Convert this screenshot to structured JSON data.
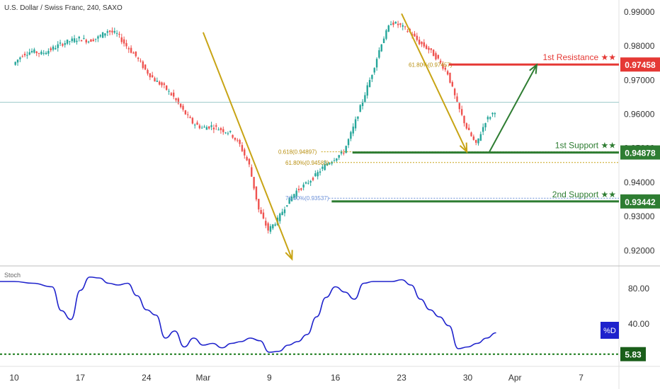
{
  "header": {
    "title": "U.S. Dollar / Swiss Franc, 240, SAXO"
  },
  "colors": {
    "up": "#26a69a",
    "down": "#ef5350",
    "resistance": "#e53935",
    "support": "#2e7d32",
    "arrow_gold": "#c8a415",
    "arrow_green": "#2e7d32",
    "stoch_line": "#1e22cc",
    "stoch_ref": "#1a7b1a",
    "badge_blue": "#1e22cc"
  },
  "chart_data": [
    {
      "type": "line",
      "title": "U.S. Dollar / Swiss Franc, 240, SAXO",
      "ylim": [
        0.9155,
        0.9935
      ],
      "y_ticks": [
        "0.99000",
        "0.98000",
        "0.97000",
        "0.96000",
        "0.95000",
        "0.94000",
        "0.93000",
        "0.92000"
      ],
      "y_tick_values": [
        0.99,
        0.98,
        0.97,
        0.96,
        0.95,
        0.94,
        0.93,
        0.92
      ],
      "x_ticks": [
        "10",
        "17",
        "24",
        "Mar",
        "9",
        "16",
        "23",
        "30",
        "Apr",
        "7"
      ],
      "x_tick_index": [
        0,
        7,
        14,
        20,
        27,
        34,
        41,
        48,
        53,
        60
      ],
      "day_range": [
        -1.5,
        64
      ],
      "series": [
        {
          "values": [
            [
              0,
              0.9745
            ],
            [
              1,
              0.9775
            ],
            [
              2,
              0.9785
            ],
            [
              3,
              0.9778
            ],
            [
              4,
              0.979
            ],
            [
              5,
              0.9805
            ],
            [
              6,
              0.9815
            ],
            [
              7,
              0.9822
            ],
            [
              8,
              0.9815
            ],
            [
              9,
              0.9825
            ],
            [
              10,
              0.9845
            ],
            [
              11,
              0.9835
            ],
            [
              12,
              0.98
            ],
            [
              13,
              0.977
            ],
            [
              14,
              0.973
            ],
            [
              15,
              0.97
            ],
            [
              16,
              0.968
            ],
            [
              17,
              0.965
            ],
            [
              18,
              0.961
            ],
            [
              19,
              0.9575
            ],
            [
              20,
              0.956
            ],
            [
              21,
              0.9565
            ],
            [
              22,
              0.9555
            ],
            [
              23,
              0.9545
            ],
            [
              24,
              0.951
            ],
            [
              25,
              0.945
            ],
            [
              26,
              0.932
            ],
            [
              27,
              0.926
            ],
            [
              28,
              0.929
            ],
            [
              29,
              0.934
            ],
            [
              30,
              0.9375
            ],
            [
              31,
              0.9395
            ],
            [
              32,
              0.942
            ],
            [
              33,
              0.945
            ],
            [
              34,
              0.947
            ],
            [
              35,
              0.949
            ],
            [
              36,
              0.956
            ],
            [
              37,
              0.964
            ],
            [
              38,
              0.972
            ],
            [
              39,
              0.981
            ],
            [
              40,
              0.987
            ],
            [
              41,
              0.986
            ],
            [
              42,
              0.984
            ],
            [
              43,
              0.981
            ],
            [
              44,
              0.979
            ],
            [
              45,
              0.976
            ],
            [
              46,
              0.972
            ],
            [
              47,
              0.963
            ],
            [
              48,
              0.956
            ],
            [
              49,
              0.951
            ],
            [
              50,
              0.958
            ],
            [
              51,
              0.961
            ]
          ]
        }
      ],
      "current_price": 0.9635,
      "levels": [
        {
          "name": "1st Resistance ★★",
          "value": 0.97458,
          "label": "0.97458",
          "kind": "resistance"
        },
        {
          "name": "1st Support ★★",
          "value": 0.94878,
          "label": "0.94878",
          "kind": "support"
        },
        {
          "name": "2nd Support ★★",
          "value": 0.93442,
          "label": "0.93442",
          "kind": "support"
        }
      ],
      "fib_labels": [
        {
          "text": "0.618(0.94897)",
          "value": 0.94897
        },
        {
          "text": "61.80%(0.94583)",
          "value": 0.94583
        },
        {
          "text": "76.40%(0.93537)",
          "value": 0.93537
        },
        {
          "text": "61.80%(0.97457)",
          "value": 0.97457
        }
      ],
      "arrows": [
        {
          "from": [
            20.0,
            0.984
          ],
          "to": [
            29.4,
            0.9175
          ],
          "color": "gold"
        },
        {
          "from": [
            41.0,
            0.9895
          ],
          "to": [
            47.9,
            0.949
          ],
          "color": "gold"
        },
        {
          "from": [
            50.3,
            0.949
          ],
          "to": [
            55.3,
            0.9745
          ],
          "color": "green"
        }
      ]
    },
    {
      "type": "line",
      "title": "Stoch",
      "ylim": [
        0,
        100
      ],
      "y_ticks": [
        "80.00",
        "40.00"
      ],
      "y_tick_values": [
        80,
        40
      ],
      "series": [
        {
          "name": "%D",
          "values": [
            [
              -1.5,
              88
            ],
            [
              0,
              88
            ],
            [
              2,
              86
            ],
            [
              4,
              82
            ],
            [
              5,
              55
            ],
            [
              6,
              45
            ],
            [
              7,
              78
            ],
            [
              8,
              93
            ],
            [
              9,
              92
            ],
            [
              10,
              86
            ],
            [
              11,
              84
            ],
            [
              12,
              86
            ],
            [
              13,
              72
            ],
            [
              14,
              56
            ],
            [
              15,
              50
            ],
            [
              16,
              24
            ],
            [
              17,
              32
            ],
            [
              18,
              14
            ],
            [
              19,
              24
            ],
            [
              20,
              16
            ],
            [
              21,
              18
            ],
            [
              22,
              13
            ],
            [
              23,
              18
            ],
            [
              24,
              20
            ],
            [
              25,
              24
            ],
            [
              26,
              21
            ],
            [
              27,
              8
            ],
            [
              28,
              9
            ],
            [
              29,
              16
            ],
            [
              30,
              20
            ],
            [
              31,
              28
            ],
            [
              32,
              48
            ],
            [
              33,
              70
            ],
            [
              34,
              82
            ],
            [
              35,
              76
            ],
            [
              36,
              68
            ],
            [
              37,
              86
            ],
            [
              38,
              88
            ],
            [
              39,
              88
            ],
            [
              40,
              88
            ],
            [
              41,
              90
            ],
            [
              42,
              84
            ],
            [
              43,
              68
            ],
            [
              44,
              56
            ],
            [
              45,
              48
            ],
            [
              46,
              38
            ],
            [
              47,
              12
            ],
            [
              48,
              14
            ],
            [
              49,
              18
            ],
            [
              50,
              24
            ],
            [
              51,
              30
            ]
          ]
        }
      ],
      "reference_level": {
        "value": 5.83,
        "label": "5.83"
      },
      "badge": "%D"
    }
  ]
}
